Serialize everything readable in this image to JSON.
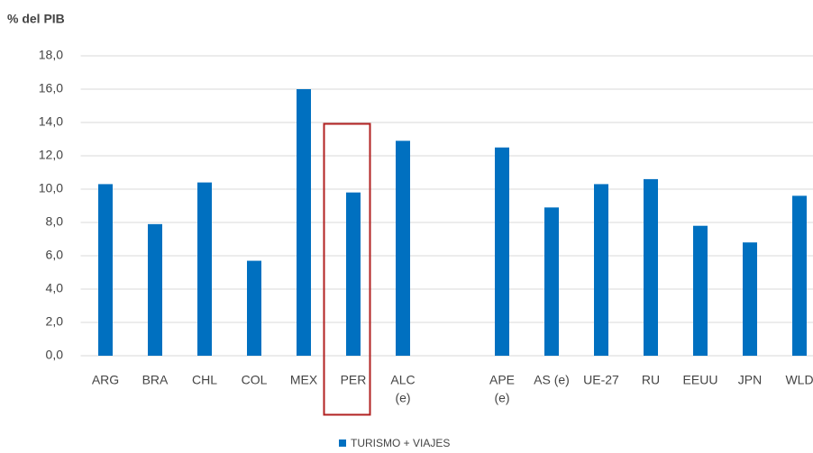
{
  "chart_data": {
    "type": "bar",
    "y_label": "% del PIB",
    "categories": [
      "ARG",
      "BRA",
      "CHL",
      "COL",
      "MEX",
      "PER",
      [
        "ALC",
        "(e)"
      ],
      null,
      [
        "APE",
        "(e)"
      ],
      "AS (e)",
      "UE-27",
      "RU",
      "EEUU",
      "JPN",
      "WLD"
    ],
    "series": [
      {
        "name": "TURISMO + VIAJES",
        "color": "#0070c0",
        "values": [
          10.3,
          7.9,
          10.4,
          5.7,
          16.0,
          9.8,
          12.9,
          null,
          12.5,
          8.9,
          10.3,
          10.6,
          7.8,
          6.8,
          9.6
        ]
      }
    ],
    "ylim": [
      0,
      18
    ],
    "yticks": [
      {
        "value": 0,
        "label": "0,0"
      },
      {
        "value": 2,
        "label": "2,0"
      },
      {
        "value": 4,
        "label": "4,0"
      },
      {
        "value": 6,
        "label": "6,0"
      },
      {
        "value": 8,
        "label": "8,0"
      },
      {
        "value": 10,
        "label": "10,0"
      },
      {
        "value": 12,
        "label": "12,0"
      },
      {
        "value": 14,
        "label": "14,0"
      },
      {
        "value": 16,
        "label": "16,0"
      },
      {
        "value": 18,
        "label": "18,0"
      }
    ],
    "grid": true,
    "legend": "bottom"
  }
}
